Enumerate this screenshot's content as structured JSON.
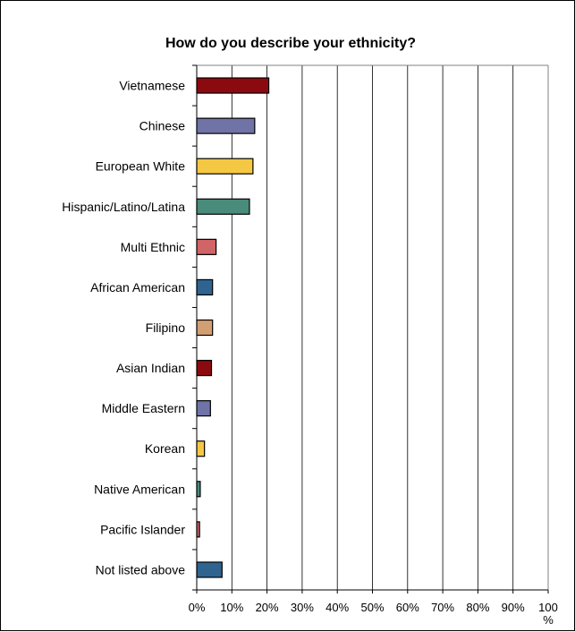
{
  "chart_data": {
    "type": "bar",
    "orientation": "horizontal",
    "title": "How do you describe your ethnicity?",
    "xlabel": "",
    "ylabel": "",
    "xlim": [
      0,
      100
    ],
    "x_tick_labels": [
      "0%",
      "10%",
      "20%",
      "30%",
      "40%",
      "50%",
      "60%",
      "70%",
      "80%",
      "90%",
      "100\n%"
    ],
    "grid": "vertical",
    "legend": "none",
    "categories": [
      "Vietnamese",
      "Chinese",
      "European White",
      "Hispanic/Latino/Latina",
      "Multi Ethnic",
      "African American",
      "Filipino",
      "Asian Indian",
      "Middle Eastern",
      "Korean",
      "Native American",
      "Pacific Islander",
      "Not listed above"
    ],
    "values": [
      20.5,
      16.5,
      16,
      15,
      5.5,
      4.5,
      4.5,
      4.2,
      3.9,
      2.2,
      1.0,
      0.8,
      7.2
    ],
    "colors": [
      "#8B0A0F",
      "#6F73A6",
      "#F5C844",
      "#4A8C7C",
      "#D06466",
      "#2F6490",
      "#D29F73",
      "#8B0A0F",
      "#6F73A6",
      "#F5C844",
      "#4A8C7C",
      "#D06466",
      "#2F6490"
    ]
  }
}
